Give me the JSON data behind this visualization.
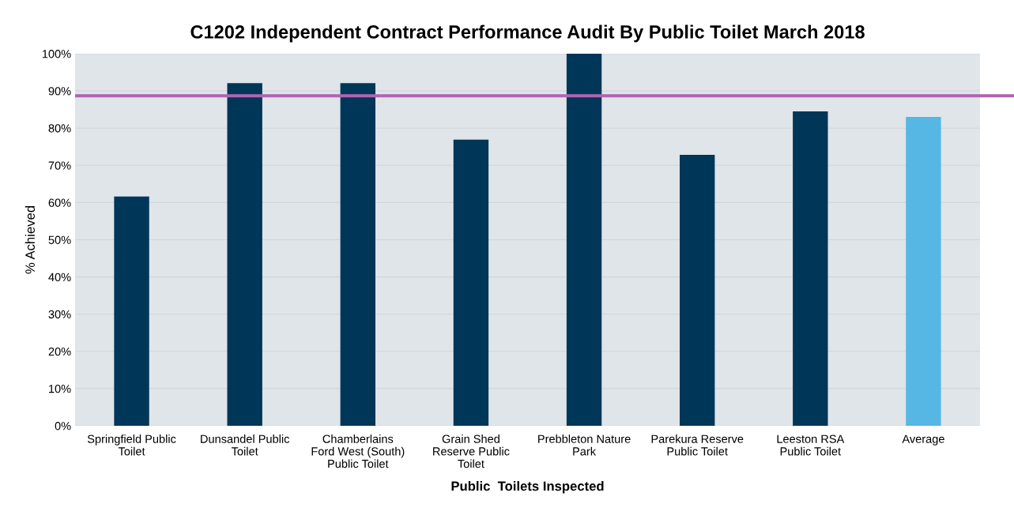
{
  "chart_data": {
    "type": "bar",
    "title": "C1202 Independent Contract Performance Audit By Public Toilet March 2018",
    "xlabel": "Public  Toilets Inspected",
    "ylabel": "% Achieved",
    "categories": [
      "Springfield Public Toilet",
      "Dunsandel Public Toilet",
      "Chamberlains Ford West (South) Public Toilet",
      "Grain Shed Reserve Public Toilet",
      "Prebbleton Nature Park",
      "Parekura Reserve Public Toilet",
      "Leeston RSA Public Toilet",
      "Average"
    ],
    "values": [
      61.6,
      92.1,
      92.1,
      76.9,
      100,
      72.8,
      84.5,
      83.0
    ],
    "colors": [
      "#003658",
      "#003658",
      "#003658",
      "#003658",
      "#003658",
      "#003658",
      "#003658",
      "#56b6e4"
    ],
    "ylim": [
      0,
      100
    ],
    "yticks": [
      {
        "value": 0,
        "label": "0%"
      },
      {
        "value": 10,
        "label": "10%"
      },
      {
        "value": 20,
        "label": "20%"
      },
      {
        "value": 30,
        "label": "30%"
      },
      {
        "value": 40,
        "label": "40%"
      },
      {
        "value": 50,
        "label": "50%"
      },
      {
        "value": 60,
        "label": "60%"
      },
      {
        "value": 70,
        "label": "70%"
      },
      {
        "value": 80,
        "label": "80%"
      },
      {
        "value": 90,
        "label": "90%"
      },
      {
        "value": 100,
        "label": "100%"
      }
    ],
    "ref_lines": [
      {
        "axis": "y",
        "value": 88.7,
        "color": "#b065b0"
      }
    ],
    "grid": "y",
    "legend": false
  }
}
